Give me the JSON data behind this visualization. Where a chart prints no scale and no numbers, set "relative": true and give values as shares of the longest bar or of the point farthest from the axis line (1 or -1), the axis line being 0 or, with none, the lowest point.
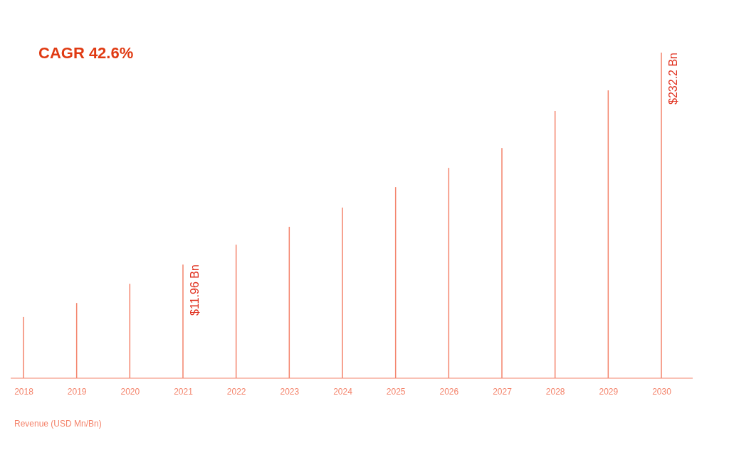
{
  "chart_data": {
    "type": "bar",
    "title": "CAGR 42.6%",
    "xlabel": "Revenue (USD Mn/Bn)",
    "relative": true,
    "categories": [
      "2018",
      "2019",
      "2020",
      "2021",
      "2022",
      "2023",
      "2024",
      "2025",
      "2026",
      "2027",
      "2028",
      "2029",
      "2030"
    ],
    "values": [
      0.188,
      0.231,
      0.29,
      0.349,
      0.41,
      0.465,
      0.524,
      0.587,
      0.646,
      0.707,
      0.821,
      0.884,
      1
    ],
    "annotations": [
      {
        "text": "$11.96 Bn",
        "x": "2021",
        "y": 0.349
      },
      {
        "text": "$232.2 Bn",
        "x": "2030",
        "y": 1
      }
    ],
    "color": "#f4846c",
    "grid": false
  }
}
